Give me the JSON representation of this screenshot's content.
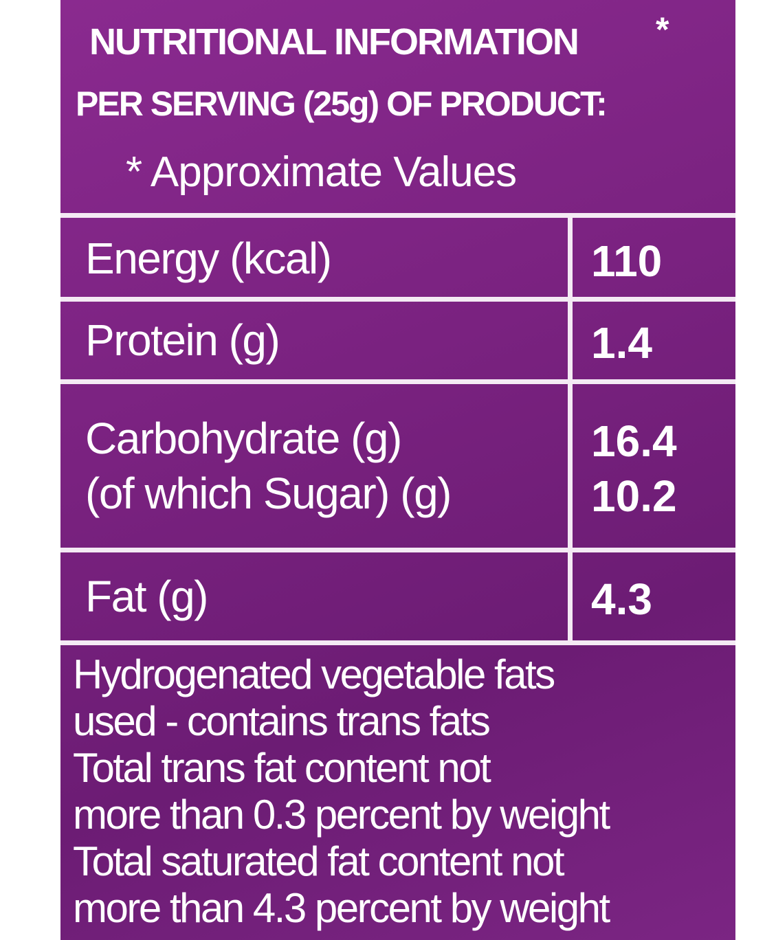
{
  "header": {
    "title": "NUTRITIONAL INFORMATION",
    "title_mark": "*",
    "subtitle": "PER SERVING (25g) OF PRODUCT:",
    "note": "* Approximate Values"
  },
  "table": {
    "rows": [
      {
        "labels": [
          "Energy (kcal)"
        ],
        "values": [
          "110"
        ]
      },
      {
        "labels": [
          "Protein (g)"
        ],
        "values": [
          "1.4"
        ]
      },
      {
        "labels": [
          "Carbohydrate (g)",
          "(of which Sugar) (g)"
        ],
        "values": [
          "16.4",
          "10.2"
        ]
      },
      {
        "labels": [
          "Fat (g)"
        ],
        "values": [
          "4.3"
        ]
      }
    ]
  },
  "footer": {
    "lines": [
      "Hydrogenated vegetable fats",
      "used - contains trans fats",
      "Total trans fat content not",
      "more than 0.3 percent by weight",
      "Total saturated fat content not",
      "more than 4.3 percent by weight"
    ]
  }
}
